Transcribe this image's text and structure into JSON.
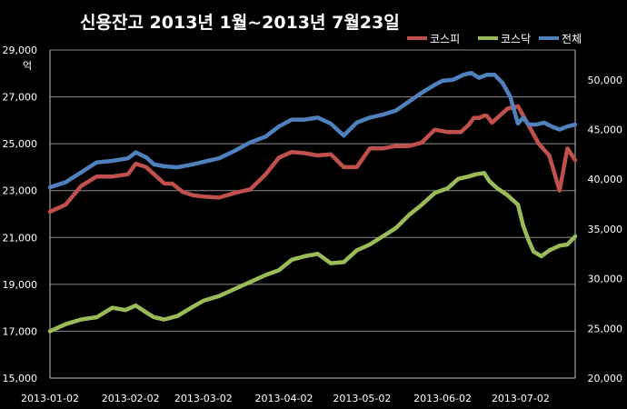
{
  "chart_data": {
    "type": "line",
    "title": "신용잔고 2013년 1월~2013년 7월23일",
    "ylabel_left": "억",
    "left_axis": {
      "ylim": [
        15000,
        29000
      ],
      "ticks": [
        "15,000",
        "17,000",
        "19,000",
        "21,000",
        "23,000",
        "25,000",
        "27,000",
        "29,000"
      ],
      "tick_values": [
        15000,
        17000,
        19000,
        21000,
        23000,
        25000,
        27000,
        29000
      ]
    },
    "right_axis": {
      "ylim": [
        20000,
        53000
      ],
      "ticks": [
        "20,000",
        "25,000",
        "30,000",
        "35,000",
        "40,000",
        "45,000",
        "50,000"
      ],
      "tick_values": [
        20000,
        25000,
        30000,
        35000,
        40000,
        45000,
        50000
      ]
    },
    "x_ticks": [
      "2013-01-02",
      "2013-02-02",
      "2013-03-02",
      "2013-04-02",
      "2013-05-02",
      "2013-06-02",
      "2013-07-02"
    ],
    "x_tick_dates": [
      "2013-01-02",
      "2013-02-02",
      "2013-03-02",
      "2013-04-02",
      "2013-05-02",
      "2013-06-02",
      "2013-07-02"
    ],
    "x_range": [
      "2013-01-02",
      "2013-07-23"
    ],
    "grid": true,
    "legend_position": "top-right",
    "series": [
      {
        "name": "코스피",
        "axis": "left",
        "color": "#c0504d",
        "x": [
          "2013-01-02",
          "2013-01-08",
          "2013-01-14",
          "2013-01-20",
          "2013-01-26",
          "2013-02-01",
          "2013-02-04",
          "2013-02-08",
          "2013-02-11",
          "2013-02-15",
          "2013-02-18",
          "2013-02-22",
          "2013-02-26",
          "2013-03-02",
          "2013-03-08",
          "2013-03-14",
          "2013-03-20",
          "2013-03-26",
          "2013-03-31",
          "2013-04-05",
          "2013-04-10",
          "2013-04-15",
          "2013-04-20",
          "2013-04-25",
          "2013-04-30",
          "2013-05-05",
          "2013-05-10",
          "2013-05-15",
          "2013-05-20",
          "2013-05-25",
          "2013-05-30",
          "2013-06-04",
          "2013-06-09",
          "2013-06-12",
          "2013-06-14",
          "2013-06-16",
          "2013-06-18",
          "2013-06-19",
          "2013-06-21",
          "2013-06-24",
          "2013-06-27",
          "2013-07-01",
          "2013-07-05",
          "2013-07-09",
          "2013-07-13",
          "2013-07-17",
          "2013-07-20",
          "2013-07-23"
        ],
        "values": [
          22100,
          22400,
          23200,
          23600,
          23600,
          23700,
          24150,
          24000,
          23700,
          23300,
          23300,
          22950,
          22800,
          22750,
          22700,
          22900,
          23050,
          23700,
          24400,
          24650,
          24600,
          24500,
          24550,
          24000,
          24000,
          24800,
          24800,
          24900,
          24900,
          25050,
          25600,
          25500,
          25500,
          25800,
          26100,
          26100,
          26200,
          26200,
          25900,
          26200,
          26500,
          26600,
          25800,
          25000,
          24500,
          23000,
          24800,
          24300
        ]
      },
      {
        "name": "코스닥",
        "axis": "left",
        "color": "#9bbb59",
        "x": [
          "2013-01-02",
          "2013-01-08",
          "2013-01-14",
          "2013-01-20",
          "2013-01-26",
          "2013-01-31",
          "2013-02-04",
          "2013-02-08",
          "2013-02-11",
          "2013-02-15",
          "2013-02-20",
          "2013-02-26",
          "2013-03-02",
          "2013-03-08",
          "2013-03-14",
          "2013-03-20",
          "2013-03-26",
          "2013-03-31",
          "2013-04-05",
          "2013-04-10",
          "2013-04-15",
          "2013-04-20",
          "2013-04-25",
          "2013-04-30",
          "2013-05-05",
          "2013-05-10",
          "2013-05-15",
          "2013-05-20",
          "2013-05-25",
          "2013-05-30",
          "2013-06-04",
          "2013-06-08",
          "2013-06-12",
          "2013-06-15",
          "2013-06-18",
          "2013-06-20",
          "2013-06-23",
          "2013-06-27",
          "2013-07-01",
          "2013-07-03",
          "2013-07-05",
          "2013-07-07",
          "2013-07-10",
          "2013-07-13",
          "2013-07-17",
          "2013-07-20",
          "2013-07-23"
        ],
        "values": [
          17000,
          17300,
          17500,
          17600,
          18000,
          17900,
          18100,
          17800,
          17600,
          17500,
          17650,
          18050,
          18300,
          18500,
          18800,
          19100,
          19400,
          19600,
          20050,
          20200,
          20300,
          19900,
          19950,
          20450,
          20700,
          21050,
          21400,
          21950,
          22400,
          22900,
          23100,
          23500,
          23600,
          23700,
          23750,
          23400,
          23100,
          22800,
          22400,
          21500,
          20900,
          20400,
          20200,
          20450,
          20650,
          20700,
          21050
        ]
      },
      {
        "name": "전체",
        "axis": "right",
        "color": "#4f81bd",
        "x": [
          "2013-01-02",
          "2013-01-08",
          "2013-01-14",
          "2013-01-20",
          "2013-01-26",
          "2013-02-01",
          "2013-02-04",
          "2013-02-08",
          "2013-02-11",
          "2013-02-15",
          "2013-02-20",
          "2013-02-26",
          "2013-03-02",
          "2013-03-08",
          "2013-03-14",
          "2013-03-20",
          "2013-03-26",
          "2013-03-31",
          "2013-04-05",
          "2013-04-10",
          "2013-04-15",
          "2013-04-20",
          "2013-04-25",
          "2013-04-30",
          "2013-05-05",
          "2013-05-10",
          "2013-05-15",
          "2013-05-20",
          "2013-05-25",
          "2013-05-30",
          "2013-06-02",
          "2013-06-06",
          "2013-06-10",
          "2013-06-13",
          "2013-06-16",
          "2013-06-19",
          "2013-06-22",
          "2013-06-25",
          "2013-06-28",
          "2013-07-01",
          "2013-07-03",
          "2013-07-05",
          "2013-07-08",
          "2013-07-11",
          "2013-07-14",
          "2013-07-17",
          "2013-07-20",
          "2013-07-23"
        ],
        "values": [
          39200,
          39700,
          40700,
          41700,
          41850,
          42100,
          42700,
          42200,
          41500,
          41300,
          41200,
          41500,
          41750,
          42100,
          42850,
          43700,
          44300,
          45300,
          46000,
          46000,
          46200,
          45600,
          44400,
          45700,
          46200,
          46500,
          46900,
          47800,
          48700,
          49500,
          49900,
          50000,
          50500,
          50700,
          50200,
          50500,
          50500,
          49700,
          48300,
          45600,
          46200,
          45500,
          45500,
          45700,
          45300,
          45000,
          45300,
          45500
        ]
      }
    ]
  }
}
